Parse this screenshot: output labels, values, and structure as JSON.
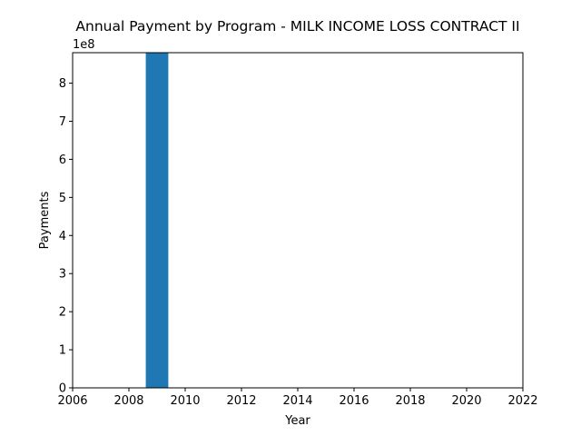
{
  "chart_data": {
    "type": "bar",
    "title": "Annual Payment by Program - MILK INCOME LOSS CONTRACT II",
    "xlabel": "Year",
    "ylabel": "Payments",
    "offset_label": "1e8",
    "x": [
      2009
    ],
    "values": [
      880000000
    ],
    "bar_width": 0.8,
    "xlim": [
      2006,
      2022
    ],
    "ylim": [
      0,
      880000000
    ],
    "x_ticks": [
      2006,
      2008,
      2010,
      2012,
      2014,
      2016,
      2018,
      2020,
      2022
    ],
    "x_tick_labels": [
      "2006",
      "2008",
      "2010",
      "2012",
      "2014",
      "2016",
      "2018",
      "2020",
      "2022"
    ],
    "y_ticks": [
      0,
      100000000,
      200000000,
      300000000,
      400000000,
      500000000,
      600000000,
      700000000,
      800000000
    ],
    "y_tick_labels": [
      "0",
      "1",
      "2",
      "3",
      "4",
      "5",
      "6",
      "7",
      "8"
    ],
    "bar_color": "#1f77b4",
    "grid": false,
    "legend": "none"
  }
}
